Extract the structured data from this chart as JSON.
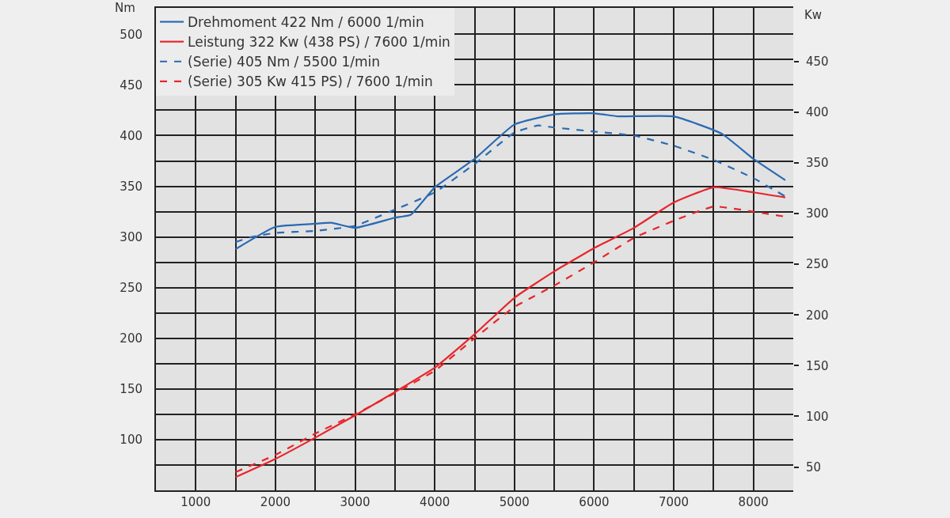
{
  "chart_data": {
    "type": "line",
    "ylabel": "Nm",
    "y2label": "Kw",
    "xlim": [
      500,
      8500
    ],
    "xticks": [
      {
        "value": 500,
        "label": null
      },
      1000,
      {
        "value": 1500,
        "label": null
      },
      2000,
      {
        "value": 2500,
        "label": null
      },
      3000,
      {
        "value": 3500,
        "label": null
      },
      4000,
      {
        "value": 4500,
        "label": null
      },
      5000,
      {
        "value": 5500,
        "label": null
      },
      6000,
      {
        "value": 6500,
        "label": null
      },
      7000,
      {
        "value": 7500,
        "label": null
      },
      8000,
      {
        "value": 8500,
        "label": null
      }
    ],
    "ylim": [
      50,
      526
    ],
    "yticks": [
      {
        "value": 50,
        "label": null
      },
      {
        "value": 75,
        "label": null
      },
      100,
      {
        "value": 125,
        "label": null
      },
      150,
      {
        "value": 175,
        "label": null
      },
      200,
      {
        "value": 225,
        "label": null
      },
      250,
      {
        "value": 275,
        "label": null
      },
      300,
      {
        "value": 325,
        "label": null
      },
      350,
      {
        "value": 375,
        "label": null
      },
      400,
      {
        "value": 425,
        "label": null
      },
      450,
      {
        "value": 475,
        "label": null
      },
      500
    ],
    "y2lim": [
      27,
      503
    ],
    "y2ticks": [
      50,
      100,
      150,
      200,
      250,
      300,
      350,
      400,
      450
    ],
    "grid": true,
    "legend": "top left",
    "marker": "none",
    "series": [
      {
        "name": "Drehmoment 422 Nm / 6000 1/min",
        "color": "#2a6ab3",
        "line_style": "solid",
        "x": [
          1500,
          2000,
          2500,
          2700,
          3000,
          3500,
          3700,
          4000,
          4500,
          5000,
          5500,
          6000,
          6300,
          7000,
          7600,
          8000,
          8400
        ],
        "values": [
          288,
          310,
          313,
          314,
          309,
          319,
          322,
          349,
          377,
          411,
          421,
          422,
          419,
          419,
          402,
          377,
          356
        ]
      },
      {
        "name": "Leistung 322 Kw (438 PS) / 7600 1/min",
        "color": "#e8262b",
        "line_style": "solid",
        "axis": "y2",
        "x": [
          1500,
          2000,
          2500,
          3000,
          3500,
          4000,
          4500,
          5000,
          5500,
          6000,
          6500,
          7000,
          7500,
          8000,
          8400
        ],
        "values": [
          40,
          58,
          79,
          101,
          124,
          148,
          181,
          217,
          243,
          266,
          286,
          311,
          326,
          321,
          316
        ]
      },
      {
        "name": "(Serie) 405 Nm / 5500 1/min",
        "color": "#2a6ab3",
        "line_style": "dashed",
        "x": [
          1500,
          1700,
          2000,
          2500,
          3000,
          3500,
          4000,
          4500,
          5000,
          5300,
          5500,
          6000,
          6500,
          7000,
          7500,
          8000,
          8400
        ],
        "values": [
          295,
          300,
          304,
          306,
          311,
          327,
          344,
          372,
          403,
          410,
          408,
          404,
          400,
          390,
          376,
          358,
          340
        ]
      },
      {
        "name": "(Serie) 305 Kw 415 PS) / 7600 1/min",
        "color": "#e8262b",
        "line_style": "dashed",
        "axis": "y2",
        "x": [
          1500,
          2000,
          2500,
          3000,
          3500,
          4000,
          4500,
          5000,
          5500,
          6000,
          6500,
          7000,
          7500,
          8000,
          8400
        ],
        "values": [
          45,
          62,
          83,
          102,
          123,
          145,
          177,
          208,
          229,
          252,
          276,
          293,
          307,
          302,
          297
        ]
      }
    ]
  }
}
